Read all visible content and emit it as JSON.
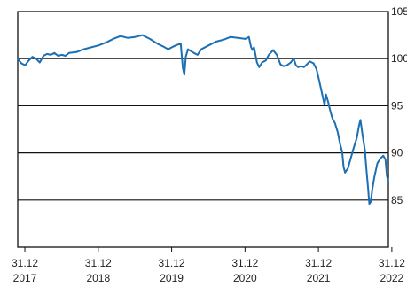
{
  "chart_data": {
    "type": "line",
    "title": "",
    "xlabel": "",
    "ylabel": "",
    "grid": true,
    "legend": "none",
    "line_color": "#1a6fb5",
    "ylim": [
      80,
      105
    ],
    "y_ticks": [
      {
        "value": 105,
        "label": "105"
      },
      {
        "value": 100,
        "label": "100"
      },
      {
        "value": 95,
        "label": "95"
      },
      {
        "value": 90,
        "label": "90"
      },
      {
        "value": 85,
        "label": "85"
      }
    ],
    "xlim": [
      2017.9,
      2022.95
    ],
    "x_ticks": [
      {
        "value": 2017.997,
        "line1": "31.12",
        "line2": "2017"
      },
      {
        "value": 2018.997,
        "line1": "31.12",
        "line2": "2018"
      },
      {
        "value": 2019.997,
        "line1": "31.12",
        "line2": "2019"
      },
      {
        "value": 2020.997,
        "line1": "31.12",
        "line2": "2020"
      },
      {
        "value": 2021.997,
        "line1": "31.12",
        "line2": "2021"
      },
      {
        "value": 2022.997,
        "line1": "31.12",
        "line2": "2022"
      }
    ],
    "series": [
      {
        "values": [
          [
            2017.9,
            100.0
          ],
          [
            2017.95,
            99.5
          ],
          [
            2018.0,
            99.3
          ],
          [
            2018.05,
            99.8
          ],
          [
            2018.1,
            100.2
          ],
          [
            2018.15,
            100.0
          ],
          [
            2018.2,
            99.6
          ],
          [
            2018.25,
            100.3
          ],
          [
            2018.3,
            100.5
          ],
          [
            2018.35,
            100.4
          ],
          [
            2018.4,
            100.6
          ],
          [
            2018.45,
            100.3
          ],
          [
            2018.5,
            100.4
          ],
          [
            2018.55,
            100.3
          ],
          [
            2018.6,
            100.6
          ],
          [
            2018.7,
            100.7
          ],
          [
            2018.8,
            101.0
          ],
          [
            2018.9,
            101.2
          ],
          [
            2019.0,
            101.4
          ],
          [
            2019.1,
            101.7
          ],
          [
            2019.2,
            102.1
          ],
          [
            2019.3,
            102.4
          ],
          [
            2019.4,
            102.2
          ],
          [
            2019.5,
            102.3
          ],
          [
            2019.6,
            102.5
          ],
          [
            2019.7,
            102.1
          ],
          [
            2019.8,
            101.6
          ],
          [
            2019.88,
            101.3
          ],
          [
            2019.95,
            101.0
          ],
          [
            2020.0,
            101.2
          ],
          [
            2020.05,
            101.4
          ],
          [
            2020.12,
            101.6
          ],
          [
            2020.15,
            99.0
          ],
          [
            2020.17,
            98.3
          ],
          [
            2020.19,
            100.2
          ],
          [
            2020.22,
            101.0
          ],
          [
            2020.3,
            100.6
          ],
          [
            2020.35,
            100.4
          ],
          [
            2020.4,
            101.0
          ],
          [
            2020.5,
            101.4
          ],
          [
            2020.6,
            101.8
          ],
          [
            2020.7,
            102.0
          ],
          [
            2020.8,
            102.3
          ],
          [
            2020.9,
            102.2
          ],
          [
            2021.0,
            102.1
          ],
          [
            2021.05,
            102.3
          ],
          [
            2021.08,
            101.2
          ],
          [
            2021.1,
            100.9
          ],
          [
            2021.12,
            101.2
          ],
          [
            2021.16,
            99.6
          ],
          [
            2021.19,
            99.1
          ],
          [
            2021.23,
            99.6
          ],
          [
            2021.28,
            99.8
          ],
          [
            2021.32,
            100.4
          ],
          [
            2021.38,
            100.9
          ],
          [
            2021.43,
            100.4
          ],
          [
            2021.48,
            99.4
          ],
          [
            2021.52,
            99.2
          ],
          [
            2021.57,
            99.3
          ],
          [
            2021.62,
            99.6
          ],
          [
            2021.66,
            100.0
          ],
          [
            2021.69,
            99.3
          ],
          [
            2021.72,
            99.1
          ],
          [
            2021.76,
            99.2
          ],
          [
            2021.8,
            99.1
          ],
          [
            2021.84,
            99.4
          ],
          [
            2021.88,
            99.7
          ],
          [
            2021.93,
            99.5
          ],
          [
            2021.97,
            98.9
          ],
          [
            2022.0,
            97.9
          ],
          [
            2022.04,
            96.5
          ],
          [
            2022.08,
            95.1
          ],
          [
            2022.1,
            96.2
          ],
          [
            2022.13,
            95.4
          ],
          [
            2022.16,
            94.4
          ],
          [
            2022.19,
            93.6
          ],
          [
            2022.22,
            93.2
          ],
          [
            2022.26,
            92.2
          ],
          [
            2022.29,
            91.0
          ],
          [
            2022.32,
            90.1
          ],
          [
            2022.34,
            88.5
          ],
          [
            2022.36,
            87.9
          ],
          [
            2022.4,
            88.4
          ],
          [
            2022.44,
            89.5
          ],
          [
            2022.48,
            90.6
          ],
          [
            2022.52,
            91.6
          ],
          [
            2022.55,
            92.9
          ],
          [
            2022.57,
            93.5
          ],
          [
            2022.6,
            91.8
          ],
          [
            2022.63,
            90.3
          ],
          [
            2022.65,
            88.3
          ],
          [
            2022.67,
            86.6
          ],
          [
            2022.69,
            84.6
          ],
          [
            2022.71,
            84.8
          ],
          [
            2022.73,
            86.1
          ],
          [
            2022.76,
            87.5
          ],
          [
            2022.8,
            88.9
          ],
          [
            2022.84,
            89.4
          ],
          [
            2022.88,
            89.7
          ],
          [
            2022.91,
            89.3
          ],
          [
            2022.93,
            87.6
          ],
          [
            2022.95,
            86.9
          ]
        ]
      }
    ]
  }
}
